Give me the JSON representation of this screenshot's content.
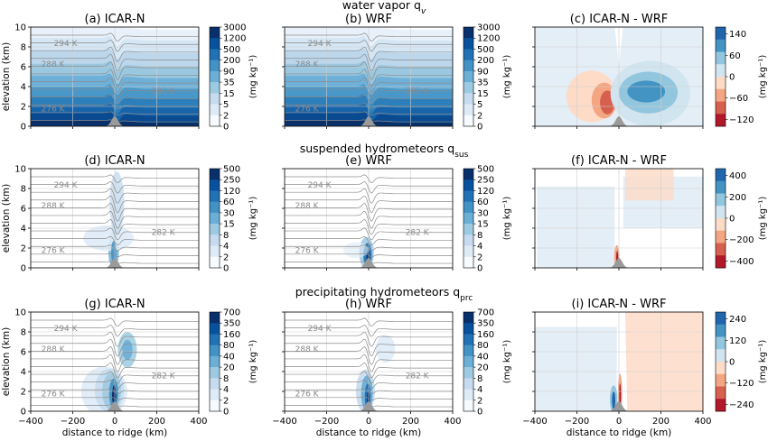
{
  "rows": [
    {
      "title": "water vapor q",
      "title_sub": "v",
      "title_sub_italic": true,
      "panels": [
        {
          "title": "(a) ICAR-N",
          "type": "field",
          "var": "qv"
        },
        {
          "title": "(b) WRF",
          "type": "field",
          "var": "qv"
        },
        {
          "title": "(c) ICAR-N - WRF",
          "type": "diff",
          "var": "qv"
        }
      ],
      "cbar_field": {
        "label": "(mg kg⁻¹)",
        "ticks": [
          "0",
          "2",
          "5",
          "15",
          "35",
          "90",
          "200",
          "500",
          "1200",
          "3000"
        ]
      },
      "cbar_diff": {
        "label": "(mg kg⁻¹)",
        "ticks": [
          "140",
          "60",
          "0",
          "−60",
          "−120"
        ]
      }
    },
    {
      "title": "suspended hydrometeors q",
      "title_sub": "sus",
      "title_sub_italic": false,
      "panels": [
        {
          "title": "(d) ICAR-N",
          "type": "field",
          "var": "qsus"
        },
        {
          "title": "(e) WRF",
          "type": "field",
          "var": "qsus"
        },
        {
          "title": "(f) ICAR-N - WRF",
          "type": "diff",
          "var": "qsus"
        }
      ],
      "cbar_field": {
        "label": "(mg kg⁻¹)",
        "ticks": [
          "0",
          "2",
          "4",
          "8",
          "15",
          "30",
          "60",
          "120",
          "250",
          "500"
        ]
      },
      "cbar_diff": {
        "label": "(mg kg⁻¹)",
        "ticks": [
          "400",
          "200",
          "0",
          "−200",
          "−400"
        ]
      }
    },
    {
      "title": "precipitating hydrometeors q",
      "title_sub": "prc",
      "title_sub_italic": false,
      "panels": [
        {
          "title": "(g) ICAR-N",
          "type": "field",
          "var": "qprc"
        },
        {
          "title": "(h) WRF",
          "type": "field",
          "var": "qprc"
        },
        {
          "title": "(i) ICAR-N - WRF",
          "type": "diff",
          "var": "qprc"
        }
      ],
      "cbar_field": {
        "label": "(mg kg⁻¹)",
        "ticks": [
          "0",
          "2",
          "4",
          "8",
          "20",
          "40",
          "80",
          "160",
          "350",
          "700"
        ]
      },
      "cbar_diff": {
        "label": "(mg kg⁻¹)",
        "ticks": [
          "240",
          "120",
          "0",
          "−120",
          "−240"
        ]
      }
    }
  ],
  "isentrope_labels": [
    "294 K",
    "288 K",
    "282 K",
    "276 K"
  ],
  "chart_data": {
    "type": "heatmap",
    "xlabel": "distance to ridge (km)",
    "ylabel": "elevation (km)",
    "xlim": [
      -400,
      400
    ],
    "ylim": [
      0,
      10
    ],
    "x_ticks": [
      "−400",
      "−200",
      "0",
      "200",
      "400"
    ],
    "y_ticks": [
      "0",
      "2",
      "4",
      "6",
      "8",
      "10"
    ],
    "x_tick_values": [
      -400,
      -200,
      0,
      200,
      400
    ],
    "y_tick_values": [
      0,
      2,
      4,
      6,
      8,
      10
    ],
    "grid": true,
    "ridge_center_km": 0
  }
}
